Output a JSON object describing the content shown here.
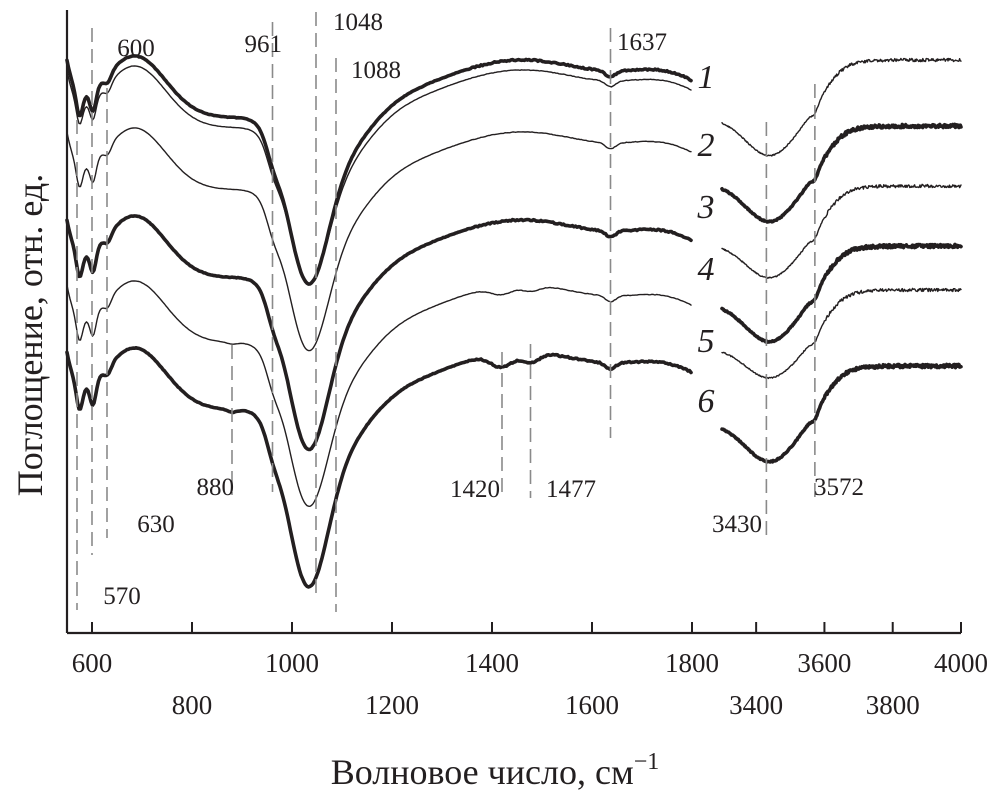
{
  "chart_data": {
    "type": "line",
    "title": "",
    "xlabel": "Волновое число, см",
    "xlabel_superscript": "−1",
    "ylabel": "Поглощение, отн. ед.",
    "x_break": true,
    "panels": [
      {
        "xlim": [
          550,
          1800
        ],
        "ticks": [
          600,
          800,
          1000,
          1200,
          1400,
          1600,
          1800
        ],
        "tick_labels": [
          "600",
          "800",
          "1000",
          "1200",
          "1400",
          "1600",
          "1800"
        ]
      },
      {
        "xlim": [
          3300,
          4000
        ],
        "ticks": [
          3400,
          3600,
          3800,
          4000
        ],
        "tick_labels": [
          "3400",
          "3600",
          "3800",
          "4000"
        ]
      }
    ],
    "y_units": "relative (curves vertically offset)",
    "peak_markers": [
      {
        "label": "570",
        "x": 570
      },
      {
        "label": "600",
        "x": 600
      },
      {
        "label": "630",
        "x": 630
      },
      {
        "label": "880",
        "x": 880
      },
      {
        "label": "961",
        "x": 961
      },
      {
        "label": "1048",
        "x": 1048
      },
      {
        "label": "1088",
        "x": 1088
      },
      {
        "label": "1420",
        "x": 1420
      },
      {
        "label": "1477",
        "x": 1477
      },
      {
        "label": "1637",
        "x": 1637
      },
      {
        "label": "3430",
        "x": 3430
      },
      {
        "label": "3572",
        "x": 3572
      }
    ],
    "series": [
      {
        "name": "1",
        "weight": "thin"
      },
      {
        "name": "2",
        "weight": "bold"
      },
      {
        "name": "3",
        "weight": "thin"
      },
      {
        "name": "4",
        "weight": "bold"
      },
      {
        "name": "5",
        "weight": "thin"
      },
      {
        "name": "6",
        "weight": "bold"
      }
    ]
  }
}
